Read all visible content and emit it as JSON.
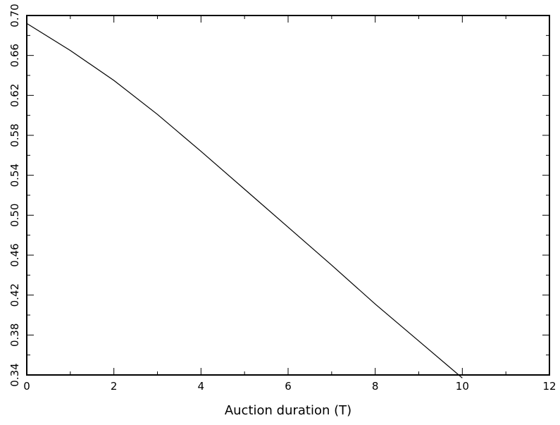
{
  "chart_data": {
    "type": "line",
    "title": "",
    "xlabel": "Auction duration (T)",
    "ylabel": "",
    "xlim": [
      0,
      12
    ],
    "ylim": [
      0.34,
      0.7
    ],
    "x_ticks": [
      "0",
      "2",
      "4",
      "6",
      "8",
      "10",
      "12"
    ],
    "y_ticks": [
      "0.34",
      "0.38",
      "0.42",
      "0.46",
      "0.50",
      "0.54",
      "0.58",
      "0.62",
      "0.66",
      "0.70"
    ],
    "grid": false,
    "series": [
      {
        "x": [
          0,
          1,
          2,
          3,
          4,
          5,
          6,
          7,
          8,
          9,
          10
        ],
        "y": [
          0.692,
          0.665,
          0.635,
          0.601,
          0.564,
          0.526,
          0.488,
          0.45,
          0.411,
          0.374,
          0.337
        ]
      }
    ]
  }
}
